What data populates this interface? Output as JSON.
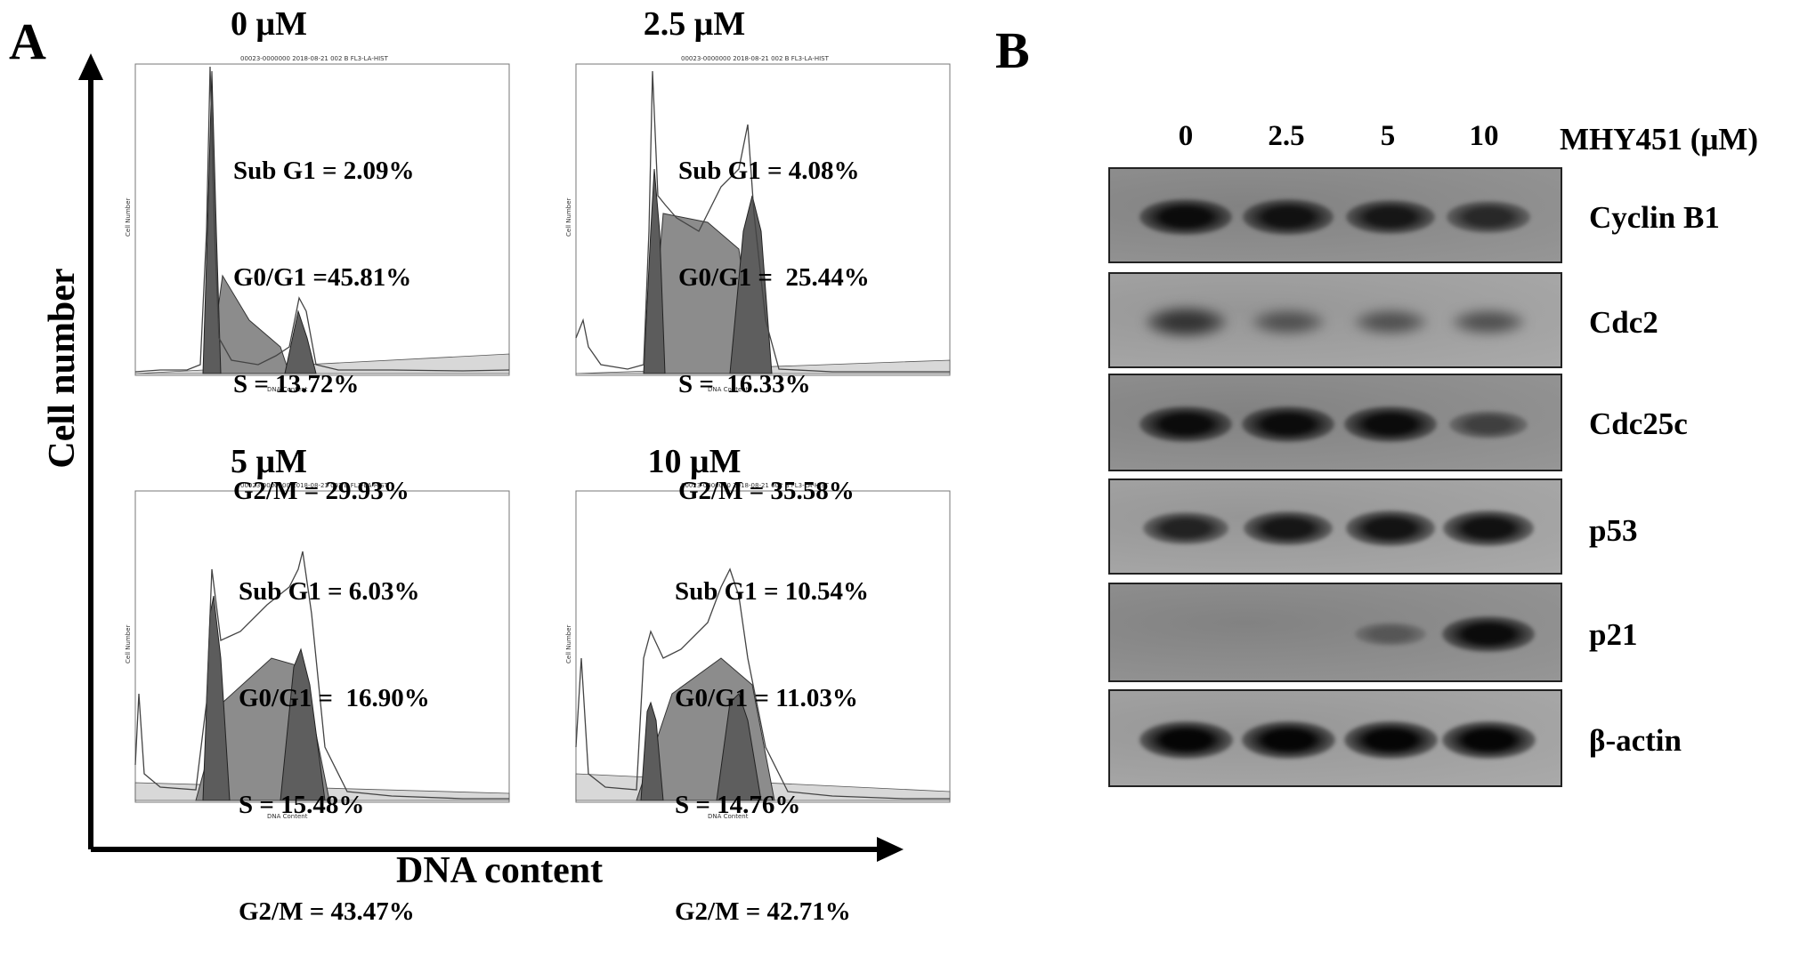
{
  "panel_a": {
    "letter": "A",
    "y_axis_label": "Cell number",
    "x_axis_label": "DNA content",
    "histograms": [
      {
        "title": "0 μM",
        "sub_g1": "Sub G1 = 2.09%",
        "g0g1": "G0/G1 =45.81%",
        "s": "S = 13.72%",
        "g2m": "G2/M = 29.93%"
      },
      {
        "title": "2.5 μM",
        "sub_g1": "Sub G1 = 4.08%",
        "g0g1": "G0/G1 =  25.44%",
        "s": "S =  16.33%",
        "g2m": "G2/M = 35.58%"
      },
      {
        "title": "5 μM",
        "sub_g1": "Sub G1 = 6.03%",
        "g0g1": "G0/G1 =  16.90%",
        "s": "S = 15.48%",
        "g2m": "G2/M = 43.47%"
      },
      {
        "title": "10 μM",
        "sub_g1": "Sub G1 = 10.54%",
        "g0g1": "G0/G1 = 11.03%",
        "s": "S = 14.76%",
        "g2m": "G2/M = 42.71%"
      }
    ]
  },
  "panel_b": {
    "letter": "B",
    "treatment_label": "MHY451 (μM)",
    "lanes": [
      "0",
      "2.5",
      "5",
      "10"
    ],
    "blots": [
      {
        "protein": "Cyclin B1",
        "intensity": [
          0.95,
          0.9,
          0.85,
          0.7
        ]
      },
      {
        "protein": "Cdc2",
        "intensity": [
          0.6,
          0.35,
          0.35,
          0.35
        ]
      },
      {
        "protein": "Cdc25c",
        "intensity": [
          0.95,
          0.95,
          0.95,
          0.5
        ]
      },
      {
        "protein": "p53",
        "intensity": [
          0.75,
          0.85,
          0.88,
          0.9
        ]
      },
      {
        "protein": "p21",
        "intensity": [
          0.0,
          0.0,
          0.3,
          0.95
        ]
      },
      {
        "protein": "β-actin",
        "intensity": [
          1.0,
          1.0,
          1.0,
          1.0
        ]
      }
    ]
  }
}
